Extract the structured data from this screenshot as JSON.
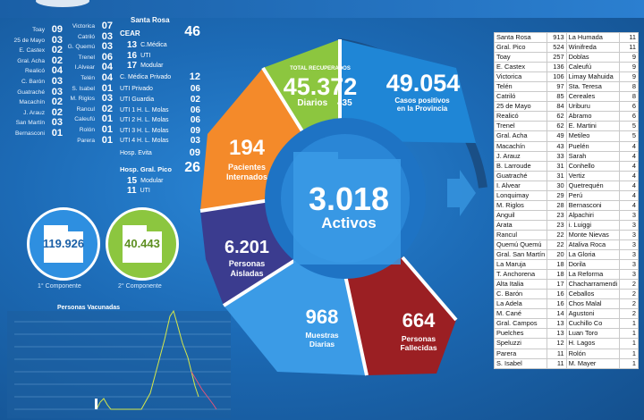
{
  "col1": [
    {
      "city": "Toay",
      "n": "09"
    },
    {
      "city": "25 de Mayo",
      "n": "03"
    },
    {
      "city": "E. Castex",
      "n": "02"
    },
    {
      "city": "Gral. Acha",
      "n": "02"
    },
    {
      "city": "Realicó",
      "n": "04"
    },
    {
      "city": "C. Barón",
      "n": "03"
    },
    {
      "city": "Guatraché",
      "n": "03"
    },
    {
      "city": "Macachín",
      "n": "02"
    },
    {
      "city": "J. Arauz",
      "n": "02"
    },
    {
      "city": "San Martín",
      "n": "03"
    },
    {
      "city": "Bernasconi",
      "n": "01"
    }
  ],
  "col2": [
    {
      "city": "Victorica",
      "n": "07"
    },
    {
      "city": "Catriló",
      "n": "03"
    },
    {
      "city": "G. Quemú",
      "n": "03"
    },
    {
      "city": "Trenel",
      "n": "06"
    },
    {
      "city": "I.Alvear",
      "n": "04"
    },
    {
      "city": "Telén",
      "n": "04"
    },
    {
      "city": "S. Isabel",
      "n": "01"
    },
    {
      "city": "M. Riglos",
      "n": "03"
    },
    {
      "city": "Rancul",
      "n": "02"
    },
    {
      "city": "Caleufú",
      "n": "01"
    },
    {
      "city": "Rolón",
      "n": "01"
    },
    {
      "city": "Parera",
      "n": "01"
    }
  ],
  "col3": {
    "santa_rosa": "Santa Rosa",
    "cear": "CEAR",
    "cear_total": "46",
    "cear_items": [
      {
        "n": "13",
        "label": "C.Médica"
      },
      {
        "n": "16",
        "label": "UTI"
      },
      {
        "n": "17",
        "label": "Modular"
      }
    ],
    "c_medica_privado": "C. Médica Privado",
    "c_medica_privado_n": "12",
    "uti_items": [
      {
        "label": "UTI Privado",
        "n": "06"
      },
      {
        "label": "UTI Guardia",
        "n": "02"
      },
      {
        "label": "UTI 1 H. L. Molas",
        "n": "06"
      },
      {
        "label": "UTI 2 H. L. Molas",
        "n": "06"
      },
      {
        "label": "UTI 3 H. L. Molas",
        "n": "09"
      },
      {
        "label": "UTI 4 H. L. Molas",
        "n": "03"
      }
    ],
    "hosp_evita": "Hosp. Evita",
    "hosp_evita_n": "09",
    "hosp_pico": "Hosp. Gral. Pico",
    "hosp_pico_n": "26",
    "pico_items": [
      {
        "n": "15",
        "label": "Modular"
      },
      {
        "n": "11",
        "label": "UTI"
      }
    ]
  },
  "components": [
    {
      "value": "119.926",
      "label": "1° Componente",
      "color": "#2e8fe0"
    },
    {
      "value": "40.443",
      "label": "2° Componente",
      "color": "#8cc63f"
    }
  ],
  "mini_chart": {
    "title": "Personas Vacunadas"
  },
  "ring": {
    "center_value": "3.018",
    "center_label": "Activos",
    "recuperados_title": "TOTAL RECUPERADOS",
    "recuperados_value": "45.372",
    "recuperados_daily_label": "Diarios",
    "recuperados_daily": "435",
    "positivos_value": "49.054",
    "positivos_label1": "Casos positivos",
    "positivos_label2": "en la Provincia",
    "internados_value": "194",
    "internados_label1": "Pacientes",
    "internados_label2": "Internados",
    "aisladas_value": "6.201",
    "aisladas_label1": "Personas",
    "aisladas_label2": "Aisladas",
    "muestras_value": "968",
    "muestras_label1": "Muestras",
    "muestras_label2": "Diarias",
    "fallecidas_value": "664",
    "fallecidas_label1": "Personas",
    "fallecidas_label2": "Fallecidas",
    "colors": {
      "recuperados": "#8cc63f",
      "positivos": "#1f86d6",
      "internados": "#f48a2a",
      "aisladas": "#3b3c8f",
      "muestras": "#3b9be6",
      "fallecidas": "#9b1f23"
    }
  },
  "table": [
    [
      "Santa Rosa",
      "913",
      "La Humada",
      "11"
    ],
    [
      "Gral. Pico",
      "524",
      "Winifreda",
      "11"
    ],
    [
      "Toay",
      "257",
      "Doblas",
      "9"
    ],
    [
      "E. Castex",
      "136",
      "Caleufú",
      "9"
    ],
    [
      "Victorica",
      "106",
      "Limay Mahuida",
      "9"
    ],
    [
      "Telén",
      "97",
      "Sta. Teresa",
      "8"
    ],
    [
      "Catriló",
      "85",
      "Cereales",
      "8"
    ],
    [
      "25 de Mayo",
      "84",
      "Uriburu",
      "6"
    ],
    [
      "Realicó",
      "62",
      "Abramo",
      "6"
    ],
    [
      "Trenel",
      "62",
      "E. Martini",
      "5"
    ],
    [
      "Gral. Acha",
      "49",
      "Metileo",
      "5"
    ],
    [
      "Macachín",
      "43",
      "Puelén",
      "4"
    ],
    [
      "J. Arauz",
      "33",
      "Sarah",
      "4"
    ],
    [
      "B. Larroude",
      "31",
      "Conhello",
      "4"
    ],
    [
      "Guatraché",
      "31",
      "Vertiz",
      "4"
    ],
    [
      "I. Alvear",
      "30",
      "Quetrequén",
      "4"
    ],
    [
      "Lonquimay",
      "29",
      "Perú",
      "4"
    ],
    [
      "M. Riglos",
      "28",
      "Bernasconi",
      "4"
    ],
    [
      "Anguil",
      "23",
      "Alpachiri",
      "3"
    ],
    [
      "Arata",
      "23",
      "i. Luiggi",
      "3"
    ],
    [
      "Rancul",
      "22",
      "Monte Nievas",
      "3"
    ],
    [
      "Quemú Quemú",
      "22",
      "Ataliva Roca",
      "3"
    ],
    [
      "Gral. San Martín",
      "20",
      "La Gloria",
      "3"
    ],
    [
      "La Maruja",
      "18",
      "Dorila",
      "3"
    ],
    [
      "T. Anchorena",
      "18",
      "La Reforma",
      "3"
    ],
    [
      "Alta Italia",
      "17",
      "Chacharramendi",
      "2"
    ],
    [
      "C. Barón",
      "16",
      "Ceballos",
      "2"
    ],
    [
      "La Adela",
      "16",
      "Chos Malal",
      "2"
    ],
    [
      "M. Cané",
      "14",
      "Agustoni",
      "2"
    ],
    [
      "Gral. Campos",
      "13",
      "Cuchillo Co",
      "1"
    ],
    [
      "Puelches",
      "13",
      "Luan Toro",
      "1"
    ],
    [
      "Speluzzi",
      "12",
      "H. Lagos",
      "1"
    ],
    [
      "Parera",
      "11",
      "Rolón",
      "1"
    ],
    [
      "S. Isabel",
      "11",
      "M. Mayer",
      "1"
    ]
  ]
}
